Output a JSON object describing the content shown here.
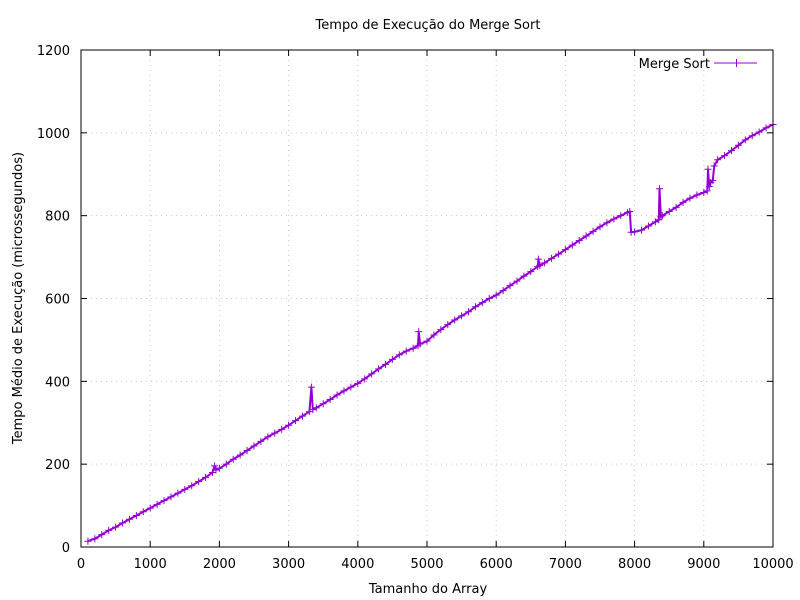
{
  "chart_data": {
    "type": "line",
    "title": "Tempo de Execução do Merge Sort",
    "xlabel": "Tamanho do Array",
    "ylabel": "Tempo Médio de Execução (microssegundos)",
    "xlim": [
      0,
      10000
    ],
    "ylim": [
      0,
      1200
    ],
    "xticks": [
      0,
      1000,
      2000,
      3000,
      4000,
      5000,
      6000,
      7000,
      8000,
      9000,
      10000
    ],
    "yticks": [
      0,
      200,
      400,
      600,
      800,
      1000,
      1200
    ],
    "grid": true,
    "legend": "top-right",
    "series": [
      {
        "name": "Merge Sort",
        "color": "#9400d3",
        "marker": "plus",
        "points": [
          [
            100,
            14
          ],
          [
            200,
            20
          ],
          [
            300,
            30
          ],
          [
            400,
            40
          ],
          [
            500,
            48
          ],
          [
            600,
            58
          ],
          [
            700,
            67
          ],
          [
            800,
            76
          ],
          [
            900,
            85
          ],
          [
            1000,
            94
          ],
          [
            1100,
            103
          ],
          [
            1200,
            112
          ],
          [
            1300,
            121
          ],
          [
            1400,
            130
          ],
          [
            1500,
            139
          ],
          [
            1600,
            148
          ],
          [
            1700,
            158
          ],
          [
            1800,
            168
          ],
          [
            1900,
            180
          ],
          [
            1930,
            196
          ],
          [
            1950,
            186
          ],
          [
            2000,
            190
          ],
          [
            2100,
            200
          ],
          [
            2200,
            212
          ],
          [
            2300,
            222
          ],
          [
            2400,
            233
          ],
          [
            2500,
            244
          ],
          [
            2600,
            255
          ],
          [
            2700,
            266
          ],
          [
            2800,
            275
          ],
          [
            2900,
            284
          ],
          [
            3000,
            294
          ],
          [
            3100,
            305
          ],
          [
            3200,
            316
          ],
          [
            3300,
            327
          ],
          [
            3330,
            386
          ],
          [
            3350,
            332
          ],
          [
            3400,
            336
          ],
          [
            3500,
            346
          ],
          [
            3600,
            356
          ],
          [
            3700,
            367
          ],
          [
            3800,
            377
          ],
          [
            3900,
            386
          ],
          [
            4000,
            395
          ],
          [
            4100,
            406
          ],
          [
            4200,
            418
          ],
          [
            4300,
            430
          ],
          [
            4400,
            441
          ],
          [
            4500,
            453
          ],
          [
            4600,
            464
          ],
          [
            4700,
            473
          ],
          [
            4800,
            480
          ],
          [
            4870,
            486
          ],
          [
            4880,
            520
          ],
          [
            4900,
            490
          ],
          [
            5000,
            497
          ],
          [
            5100,
            512
          ],
          [
            5200,
            525
          ],
          [
            5300,
            537
          ],
          [
            5400,
            548
          ],
          [
            5500,
            558
          ],
          [
            5600,
            568
          ],
          [
            5700,
            580
          ],
          [
            5800,
            590
          ],
          [
            5900,
            600
          ],
          [
            6000,
            608
          ],
          [
            6100,
            619
          ],
          [
            6200,
            631
          ],
          [
            6300,
            642
          ],
          [
            6400,
            654
          ],
          [
            6500,
            665
          ],
          [
            6600,
            677
          ],
          [
            6610,
            695
          ],
          [
            6630,
            680
          ],
          [
            6700,
            686
          ],
          [
            6800,
            697
          ],
          [
            6900,
            707
          ],
          [
            7000,
            718
          ],
          [
            7100,
            729
          ],
          [
            7200,
            740
          ],
          [
            7300,
            751
          ],
          [
            7400,
            762
          ],
          [
            7500,
            773
          ],
          [
            7600,
            783
          ],
          [
            7700,
            792
          ],
          [
            7800,
            800
          ],
          [
            7900,
            808
          ],
          [
            7930,
            810
          ],
          [
            7950,
            760
          ],
          [
            8000,
            761
          ],
          [
            8100,
            765
          ],
          [
            8200,
            775
          ],
          [
            8300,
            785
          ],
          [
            8350,
            790
          ],
          [
            8360,
            865
          ],
          [
            8380,
            797
          ],
          [
            8400,
            800
          ],
          [
            8500,
            810
          ],
          [
            8600,
            820
          ],
          [
            8700,
            832
          ],
          [
            8800,
            842
          ],
          [
            8900,
            850
          ],
          [
            9000,
            856
          ],
          [
            9050,
            860
          ],
          [
            9060,
            912
          ],
          [
            9080,
            870
          ],
          [
            9100,
            880
          ],
          [
            9130,
            885
          ],
          [
            9150,
            920
          ],
          [
            9200,
            935
          ],
          [
            9300,
            945
          ],
          [
            9400,
            957
          ],
          [
            9500,
            970
          ],
          [
            9600,
            983
          ],
          [
            9700,
            993
          ],
          [
            9800,
            1002
          ],
          [
            9900,
            1012
          ],
          [
            10000,
            1020
          ]
        ]
      }
    ]
  }
}
